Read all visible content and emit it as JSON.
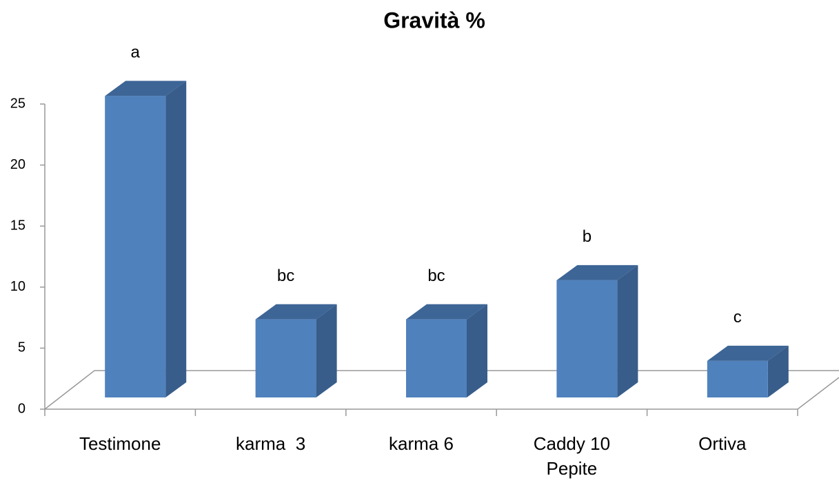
{
  "chart_data": {
    "type": "bar3d",
    "title": "Gravità  %",
    "categories": [
      "Testimone",
      "karma  3",
      "karma 6",
      "Caddy 10 Pepite",
      "Ortiva"
    ],
    "values": [
      24.7,
      6.4,
      6.4,
      9.6,
      3.0
    ],
    "annotations": [
      "a",
      "bc",
      "bc",
      "b",
      "c"
    ],
    "color": "#4f81bd",
    "ylim": [
      0,
      25
    ],
    "yticks": [
      0,
      5,
      10,
      15,
      20,
      25
    ]
  }
}
